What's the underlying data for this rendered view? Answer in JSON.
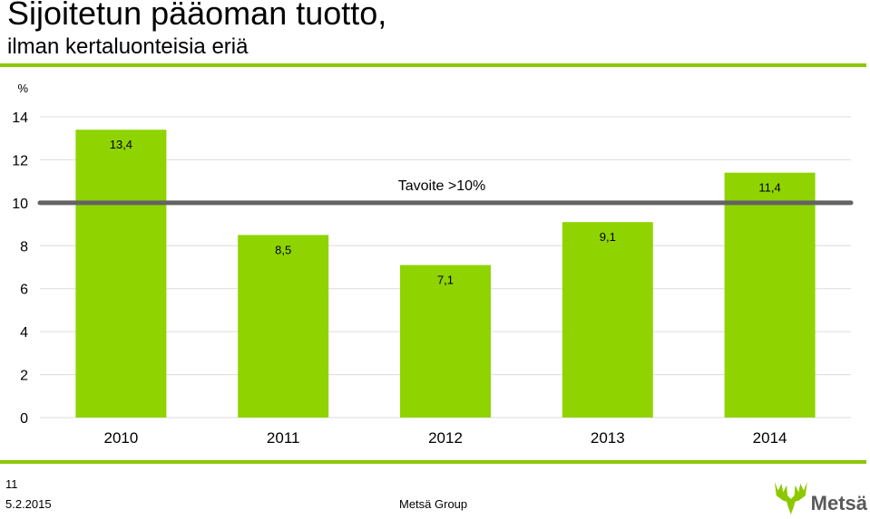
{
  "title": "Sijoitetun pääoman tuotto,",
  "subtitle": "ilman kertaluonteisia eriä",
  "colors": {
    "accent": "#8cc800",
    "bar": "#8fd400",
    "target_line": "#636363",
    "grid": "#dcdcdc",
    "logo_text": "#5a5a5a"
  },
  "chart_data": {
    "type": "bar",
    "categories": [
      "2010",
      "2011",
      "2012",
      "2013",
      "2014"
    ],
    "values": [
      13.4,
      8.5,
      7.1,
      9.1,
      11.4
    ],
    "value_labels": [
      "13,4",
      "8,5",
      "7,1",
      "9,1",
      "11,4"
    ],
    "ylabel": "%",
    "ylim": [
      0,
      14
    ],
    "yticks": [
      0,
      2,
      4,
      6,
      8,
      10,
      12,
      14
    ],
    "grid": true,
    "target": {
      "value": 10,
      "label": "Tavoite >10%"
    }
  },
  "footer": {
    "page_number": "11",
    "date": "5.2.2015",
    "company": "Metsä Group"
  },
  "logo": {
    "text": "Metsä",
    "icon": "moose-antler-icon"
  }
}
